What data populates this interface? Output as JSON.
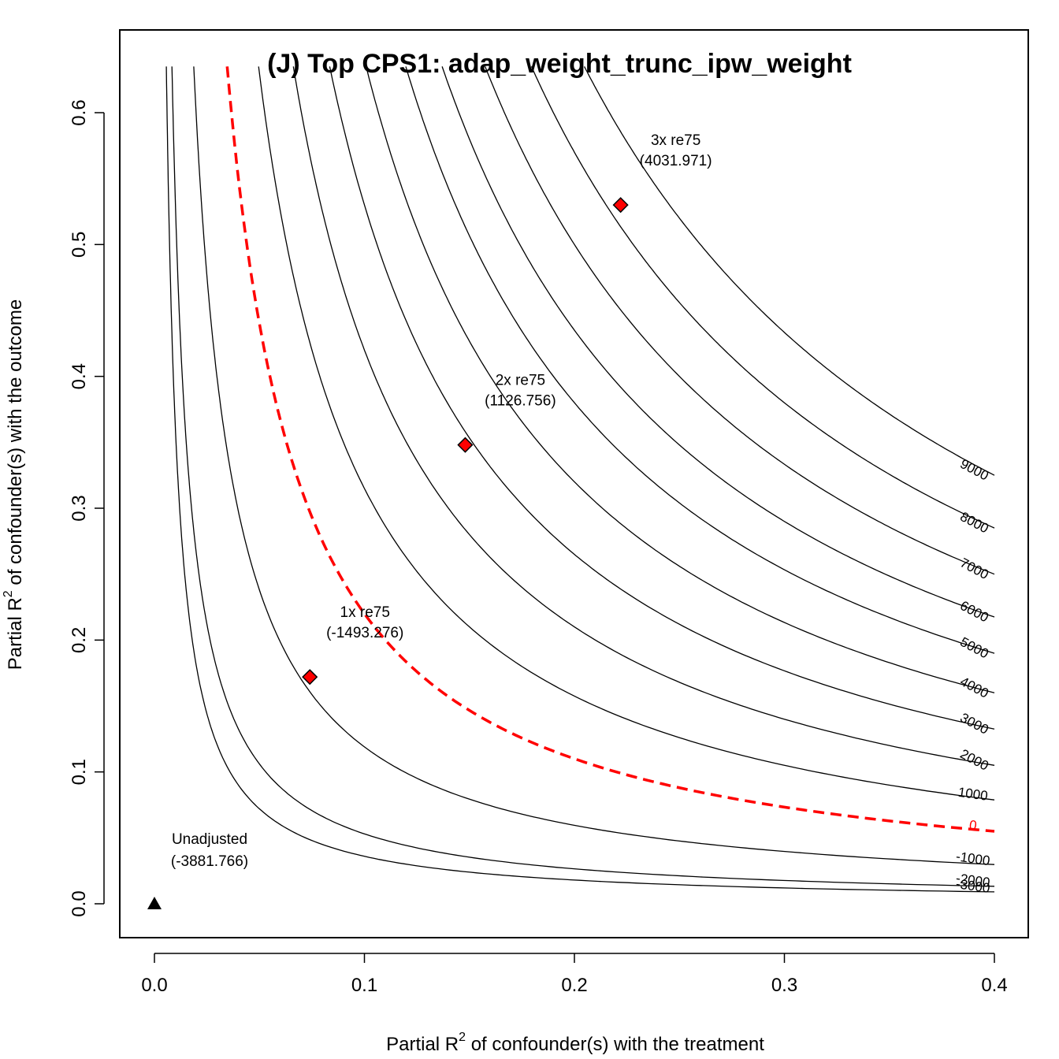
{
  "chart_data": {
    "type": "contour",
    "title": "(J) Top CPS1: adap_weight_trunc_ipw_weight",
    "xlabel": {
      "prefix": "Partial R",
      "sup": "2",
      "suffix": " of confounder(s) with the treatment"
    },
    "ylabel": {
      "prefix": "Partial R",
      "sup": "2",
      "suffix": " of confounder(s) with the outcome"
    },
    "xlim": [
      0,
      0.4
    ],
    "ylim": [
      0,
      0.6
    ],
    "x_ticks": [
      0.0,
      0.1,
      0.2,
      0.3,
      0.4
    ],
    "x_tick_labels": [
      "0.0",
      "0.1",
      "0.2",
      "0.3",
      "0.4"
    ],
    "y_ticks": [
      0.0,
      0.1,
      0.2,
      0.3,
      0.4,
      0.5,
      0.6
    ],
    "y_tick_labels": [
      "0.0",
      "0.1",
      "0.2",
      "0.3",
      "0.4",
      "0.5",
      "0.6"
    ],
    "contour_levels": [
      {
        "value": -3000,
        "label": "-3000",
        "k": 0.0036
      },
      {
        "value": -2000,
        "label": "-2000",
        "k": 0.0053
      },
      {
        "value": -1000,
        "label": "-1000",
        "k": 0.0119
      },
      {
        "value": 0,
        "label": "0",
        "k": 0.022,
        "highlight": true
      },
      {
        "value": 1000,
        "label": "1000",
        "k": 0.0315
      },
      {
        "value": 2000,
        "label": "2000",
        "k": 0.042
      },
      {
        "value": 3000,
        "label": "3000",
        "k": 0.053
      },
      {
        "value": 4000,
        "label": "4000",
        "k": 0.064
      },
      {
        "value": 5000,
        "label": "5000",
        "k": 0.076
      },
      {
        "value": 6000,
        "label": "6000",
        "k": 0.087
      },
      {
        "value": 7000,
        "label": "7000",
        "k": 0.1
      },
      {
        "value": 8000,
        "label": "8000",
        "k": 0.114
      },
      {
        "value": 9000,
        "label": "9000",
        "k": 0.13
      }
    ],
    "unadjusted": {
      "x": 0.0,
      "y": 0.0,
      "label": "Unadjusted",
      "value_label": "(-3881.766)"
    },
    "benchmarks": [
      {
        "x": 0.074,
        "y": 0.172,
        "label": "1x re75",
        "value_label": "(-1493.276)"
      },
      {
        "x": 0.148,
        "y": 0.348,
        "label": "2x re75",
        "value_label": "(1126.756)"
      },
      {
        "x": 0.222,
        "y": 0.53,
        "label": "3x re75",
        "value_label": "(4031.971)"
      }
    ],
    "colors": {
      "contour": "#000000",
      "threshold": "#ff0000",
      "marker_fill": "#ff0000",
      "marker_stroke": "#000000"
    }
  }
}
